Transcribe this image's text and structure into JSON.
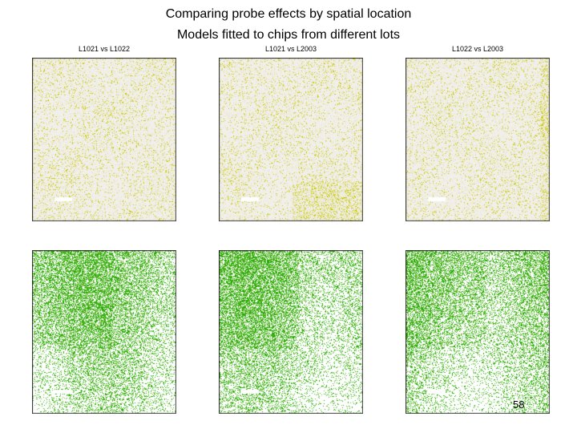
{
  "slide": {
    "title_line1": "Comparing probe effects by spatial location",
    "title_line2": "Models fitted to chips from different lots",
    "page_number": "58"
  },
  "chart_data": {
    "type": "heatmap",
    "panels": [
      {
        "label": "L1021 vs L1022",
        "row": "top",
        "colors": [
          "#c8c800",
          "#e6e4b0",
          "#f1efe9"
        ]
      },
      {
        "label": "L1021 vs L2003",
        "row": "top",
        "colors": [
          "#c8c800",
          "#e6e4b0",
          "#f1efe9"
        ]
      },
      {
        "label": "L1022 vs L2003",
        "row": "top",
        "colors": [
          "#c8c800",
          "#e6e4b0",
          "#f1efe9"
        ]
      },
      {
        "label": "",
        "row": "bottom",
        "colors": [
          "#22aa00",
          "#66bb33",
          "#ffffff"
        ]
      },
      {
        "label": "",
        "row": "bottom",
        "colors": [
          "#22aa00",
          "#66bb33",
          "#ffffff"
        ]
      },
      {
        "label": "",
        "row": "bottom",
        "colors": [
          "#22aa00",
          "#66bb33",
          "#ffffff"
        ]
      }
    ]
  }
}
